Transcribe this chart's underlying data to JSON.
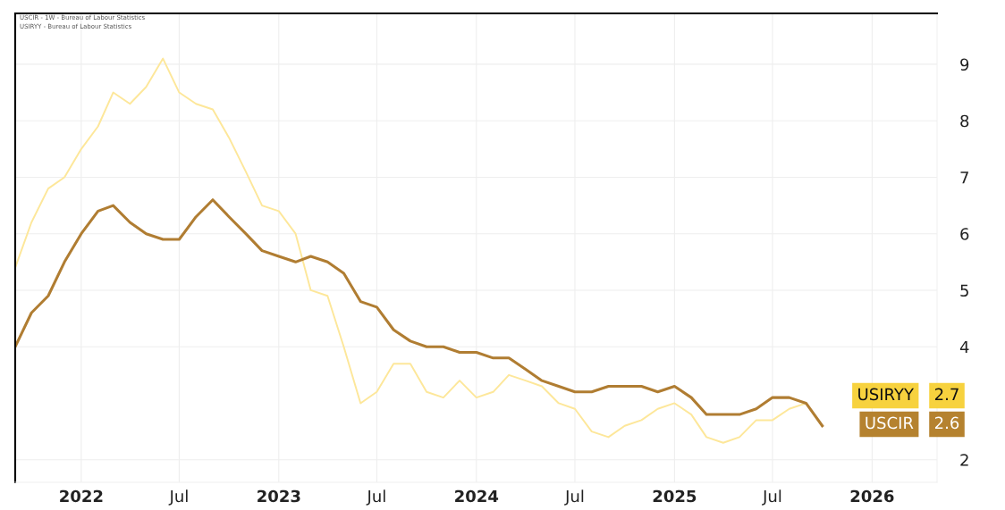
{
  "chart_data": {
    "type": "line",
    "x": [
      "2021-09",
      "2021-10",
      "2021-11",
      "2021-12",
      "2022-01",
      "2022-02",
      "2022-03",
      "2022-04",
      "2022-05",
      "2022-06",
      "2022-07",
      "2022-08",
      "2022-09",
      "2022-10",
      "2022-11",
      "2022-12",
      "2023-01",
      "2023-02",
      "2023-03",
      "2023-04",
      "2023-05",
      "2023-06",
      "2023-07",
      "2023-08",
      "2023-09",
      "2023-10",
      "2023-11",
      "2023-12",
      "2024-01",
      "2024-02",
      "2024-03",
      "2024-04",
      "2024-05",
      "2024-06",
      "2024-07",
      "2024-08",
      "2024-09",
      "2024-10",
      "2024-11",
      "2024-12",
      "2025-01",
      "2025-02",
      "2025-03",
      "2025-04",
      "2025-05",
      "2025-06",
      "2025-07",
      "2025-08",
      "2025-09",
      "2025-10"
    ],
    "series": [
      {
        "name": "USIRYY",
        "color": "#fde79a",
        "values": [
          5.4,
          6.2,
          6.8,
          7.0,
          7.5,
          7.9,
          8.5,
          8.3,
          8.6,
          9.1,
          8.5,
          8.3,
          8.2,
          7.7,
          7.1,
          6.5,
          6.4,
          6.0,
          5.0,
          4.9,
          4.0,
          3.0,
          3.2,
          3.7,
          3.7,
          3.2,
          3.1,
          3.4,
          3.1,
          3.2,
          3.5,
          3.4,
          3.3,
          3.0,
          2.9,
          2.5,
          2.4,
          2.6,
          2.7,
          2.9,
          3.0,
          2.8,
          2.4,
          2.3,
          2.4,
          2.7,
          2.7,
          2.9,
          3.0,
          null
        ]
      },
      {
        "name": "USCIR",
        "color": "#b07d32",
        "values": [
          4.0,
          4.6,
          4.9,
          5.5,
          6.0,
          6.4,
          6.5,
          6.2,
          6.0,
          5.9,
          5.9,
          6.3,
          6.6,
          6.3,
          6.0,
          5.7,
          5.6,
          5.5,
          5.6,
          5.5,
          5.3,
          4.8,
          4.7,
          4.3,
          4.1,
          4.0,
          4.0,
          3.9,
          3.9,
          3.8,
          3.8,
          3.6,
          3.4,
          3.3,
          3.2,
          3.2,
          3.3,
          3.3,
          3.3,
          3.2,
          3.3,
          3.1,
          2.8,
          2.8,
          2.8,
          2.9,
          3.1,
          3.1,
          3.0,
          2.6
        ]
      }
    ],
    "annotations": [
      "USCIR - 1W - Bureau of Labour Statistics",
      "USIRYY - Bureau of Labour Statistics",
      "2.7",
      "2.6"
    ],
    "xlim": [
      "2021-09",
      "2026-05"
    ],
    "xticks": [
      {
        "value": "2022-01",
        "label": "2022"
      },
      {
        "value": "2022-07",
        "label": "Jul"
      },
      {
        "value": "2023-01",
        "label": "2023"
      },
      {
        "value": "2023-07",
        "label": "Jul"
      },
      {
        "value": "2024-01",
        "label": "2024"
      },
      {
        "value": "2024-07",
        "label": "Jul"
      },
      {
        "value": "2025-01",
        "label": "2025"
      },
      {
        "value": "2025-07",
        "label": "Jul"
      },
      {
        "value": "2026-01",
        "label": "2026"
      }
    ],
    "ylim": [
      1.6,
      9.9
    ],
    "yticks": [
      2,
      4,
      5,
      6,
      7,
      8,
      9
    ],
    "grid": true,
    "marker": "none",
    "line_style": "solid"
  }
}
